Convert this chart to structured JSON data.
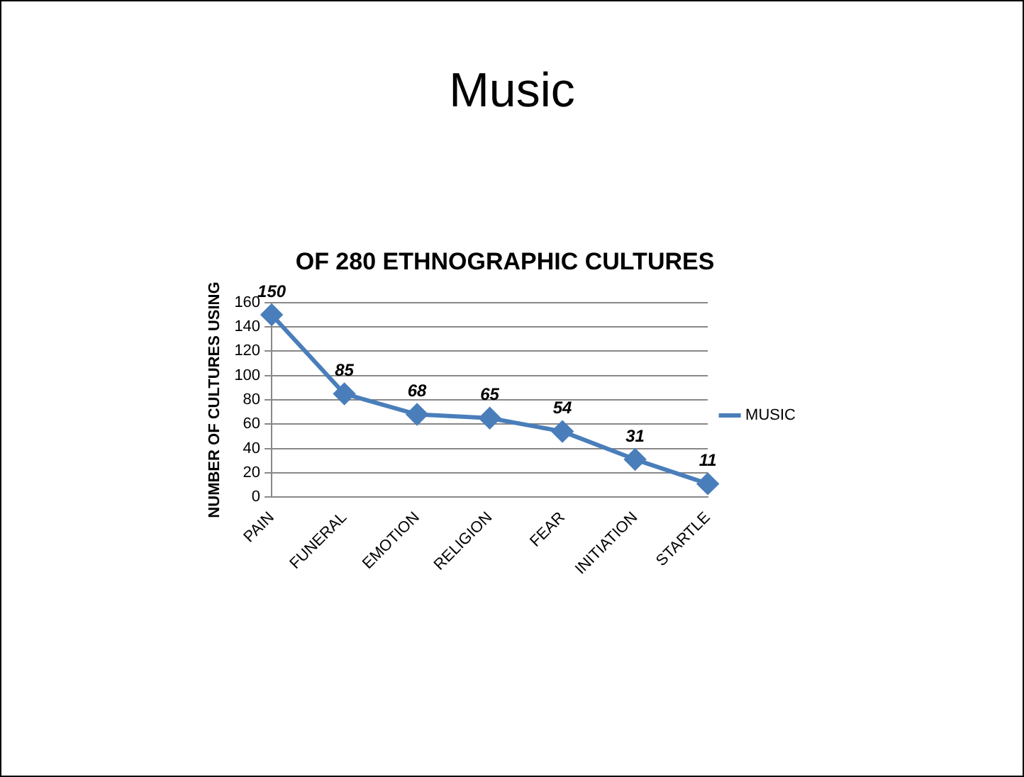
{
  "chart_data": {
    "type": "line",
    "title": "Music",
    "subtitle": "OF 280 ETHNOGRAPHIC CULTURES",
    "ylabel": "NUMBER OF CULTURES USING",
    "categories": [
      "PAIN",
      "FUNERAL",
      "EMOTION",
      "RELIGION",
      "FEAR",
      "INITIATION",
      "STARTLE"
    ],
    "series": [
      {
        "name": "MUSIC",
        "color": "#4a7ebb",
        "values": [
          150,
          85,
          68,
          65,
          54,
          31,
          11
        ]
      }
    ],
    "ylim": [
      0,
      160
    ],
    "yticks": [
      0,
      20,
      40,
      60,
      80,
      100,
      120,
      140,
      160
    ],
    "grid": "y",
    "legend": "right",
    "marker": "diamond",
    "line_style": "solid",
    "data_labels": true
  }
}
